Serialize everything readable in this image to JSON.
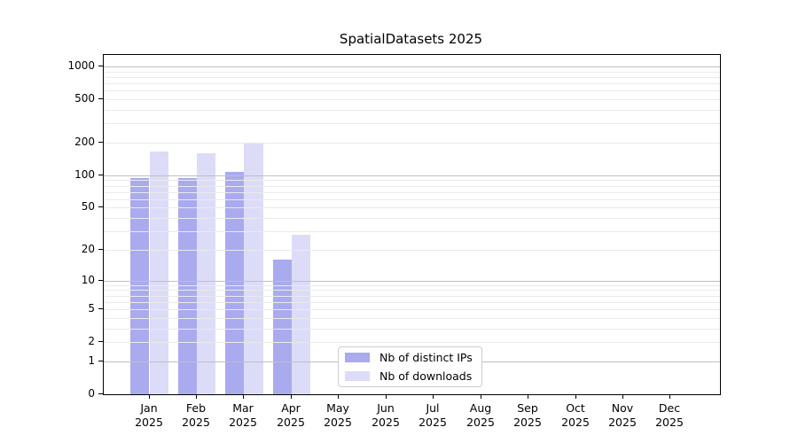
{
  "chart_data": {
    "type": "bar",
    "title": "SpatialDatasets 2025",
    "categories": [
      "Jan",
      "Feb",
      "Mar",
      "Apr",
      "May",
      "Jun",
      "Jul",
      "Aug",
      "Sep",
      "Oct",
      "Nov",
      "Dec"
    ],
    "category_year": "2025",
    "series": [
      {
        "name": "Nb of distinct IPs",
        "color": "#aaaaef",
        "values": [
          94,
          95,
          108,
          16,
          0,
          0,
          0,
          0,
          0,
          0,
          0,
          0
        ]
      },
      {
        "name": "Nb of downloads",
        "color": "#dcdcf8",
        "values": [
          166,
          161,
          196,
          28,
          0,
          0,
          0,
          0,
          0,
          0,
          0,
          0
        ]
      }
    ],
    "xlabel": "",
    "ylabel": "",
    "yscale": "log1p",
    "ylim": [
      0,
      1275
    ],
    "yticks": [
      0,
      1,
      2,
      5,
      10,
      20,
      50,
      100,
      200,
      500,
      1000
    ],
    "grid": {
      "on": true,
      "major_ticks": [
        1,
        10,
        100,
        1000
      ],
      "major_color": "#c0c0c0",
      "minor_color": "#eaeaea",
      "grid_above_bars": true
    },
    "legend": {
      "position": "inside-bottom-center",
      "entries": [
        "Nb of distinct IPs",
        "Nb of downloads"
      ]
    }
  }
}
